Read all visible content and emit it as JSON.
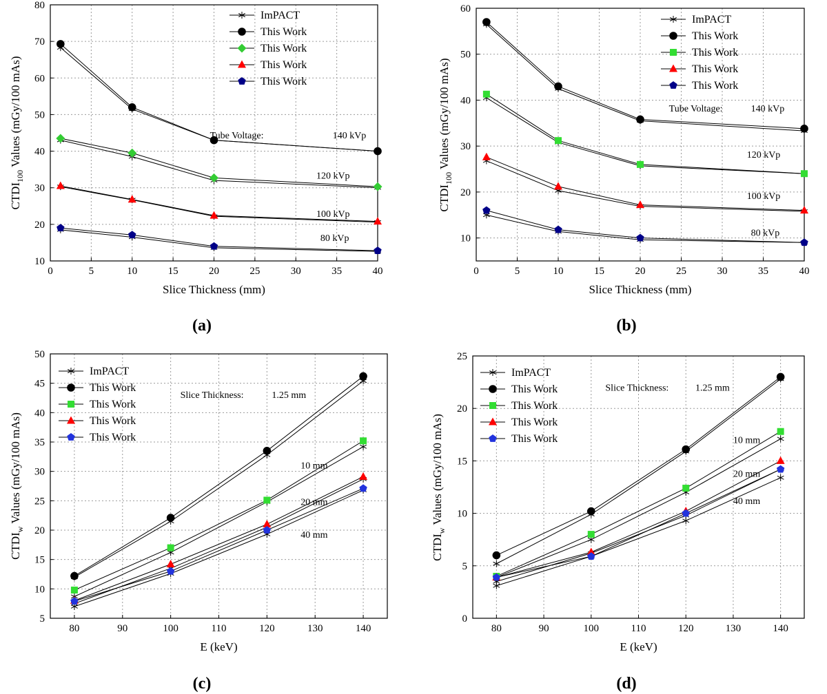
{
  "figure": {
    "panel_labels": [
      "(a)",
      "(b)",
      "(c)",
      "(d)"
    ]
  },
  "chart_data": [
    {
      "panel": "(a)",
      "type": "line",
      "xlabel": "Slice Thickness (mm)",
      "ylabel_main": "CTDI",
      "ylabel_sub": "100",
      "ylabel_rest": " Values (mGy/100 mAs)",
      "xlim": [
        0,
        40
      ],
      "ylim": [
        10,
        80
      ],
      "xticks": [
        0,
        5,
        10,
        15,
        20,
        25,
        30,
        35,
        40
      ],
      "yticks": [
        10,
        20,
        30,
        40,
        50,
        60,
        70,
        80
      ],
      "x": [
        1.25,
        10,
        20,
        40
      ],
      "legend": {
        "position": "top-right",
        "entries": [
          {
            "label": "ImPACT",
            "marker": "star",
            "color": "#000000"
          },
          {
            "label": "This Work",
            "marker": "circle",
            "color": "#000000"
          },
          {
            "label": "This Work",
            "marker": "diamond",
            "color": "#33cc33"
          },
          {
            "label": "This Work",
            "marker": "triangle",
            "color": "#ff0000"
          },
          {
            "label": "This Work",
            "marker": "pentagon",
            "color": "#000088"
          }
        ]
      },
      "groups": [
        {
          "label": "140 kVp",
          "impact": [
            68.3,
            51.5,
            43.0,
            40.0
          ],
          "thiswork": [
            69.3,
            52.0,
            43.0,
            40.0
          ],
          "marker": "circle",
          "color": "#000000"
        },
        {
          "label": "120 kVp",
          "impact": [
            43.0,
            38.5,
            32.0,
            30.0
          ],
          "thiswork": [
            43.5,
            39.5,
            32.7,
            30.3
          ],
          "marker": "diamond",
          "color": "#33cc33"
        },
        {
          "label": "100 kVp",
          "impact": [
            30.3,
            26.7,
            22.2,
            20.6
          ],
          "thiswork": [
            30.5,
            26.8,
            22.4,
            20.8
          ],
          "marker": "triangle",
          "color": "#ff0000"
        },
        {
          "label": "80 kVp",
          "impact": [
            18.5,
            16.5,
            13.6,
            12.6
          ],
          "thiswork": [
            19.0,
            17.1,
            14.0,
            12.8
          ],
          "marker": "pentagon",
          "color": "#000088"
        }
      ],
      "annotations": [
        {
          "text": "Tube Voltage:",
          "x": 19.5,
          "y": 43.5
        },
        {
          "text": "140 kVp",
          "x": 34.5,
          "y": 43.5
        },
        {
          "text": "120 kVp",
          "x": 32.5,
          "y": 32.5
        },
        {
          "text": "100 kVp",
          "x": 32.5,
          "y": 22.0
        },
        {
          "text": "80 kVp",
          "x": 33.0,
          "y": 15.5
        }
      ]
    },
    {
      "panel": "(b)",
      "type": "line",
      "xlabel": "Slice Thickness (mm)",
      "ylabel_main": "CTDI",
      "ylabel_sub": "100",
      "ylabel_rest": " Values (mGy/100 mAs)",
      "xlim": [
        0,
        40
      ],
      "ylim": [
        5,
        60
      ],
      "xticks": [
        0,
        5,
        10,
        15,
        20,
        25,
        30,
        35,
        40
      ],
      "yticks": [
        10,
        20,
        30,
        40,
        50,
        60
      ],
      "x": [
        1.25,
        10,
        20,
        40
      ],
      "legend": {
        "position": "top-right",
        "entries": [
          {
            "label": "ImPACT",
            "marker": "star",
            "color": "#000000"
          },
          {
            "label": "This Work",
            "marker": "circle",
            "color": "#000000"
          },
          {
            "label": "This Work",
            "marker": "square",
            "color": "#33dd33"
          },
          {
            "label": "This Work",
            "marker": "triangle",
            "color": "#ff0000"
          },
          {
            "label": "This Work",
            "marker": "pentagon",
            "color": "#000088"
          }
        ]
      },
      "groups": [
        {
          "label": "140 kVp",
          "impact": [
            56.5,
            42.5,
            35.5,
            33.3
          ],
          "thiswork": [
            57.0,
            43.0,
            35.8,
            33.8
          ],
          "marker": "circle",
          "color": "#000000"
        },
        {
          "label": "120 kVp",
          "impact": [
            40.5,
            30.8,
            25.7,
            24.0
          ],
          "thiswork": [
            41.3,
            31.2,
            26.0,
            24.0
          ],
          "marker": "square",
          "color": "#33dd33"
        },
        {
          "label": "100 kVp",
          "impact": [
            26.8,
            20.3,
            16.9,
            15.8
          ],
          "thiswork": [
            27.6,
            21.2,
            17.2,
            16.0
          ],
          "marker": "triangle",
          "color": "#ff0000"
        },
        {
          "label": "80 kVp",
          "impact": [
            15.0,
            11.4,
            9.6,
            9.0
          ],
          "thiswork": [
            16.0,
            11.8,
            10.0,
            9.0
          ],
          "marker": "pentagon",
          "color": "#000088"
        }
      ],
      "annotations": [
        {
          "text": "Tube Voltage:",
          "x": 23.5,
          "y": 37.5
        },
        {
          "text": "140 kVp",
          "x": 33.5,
          "y": 37.5
        },
        {
          "text": "120 kVp",
          "x": 33.0,
          "y": 27.5
        },
        {
          "text": "100 kVp",
          "x": 33.0,
          "y": 18.5
        },
        {
          "text": "80 kVp",
          "x": 33.5,
          "y": 10.5
        }
      ]
    },
    {
      "panel": "(c)",
      "type": "line",
      "xlabel": "E (keV)",
      "ylabel_main": "CTDI",
      "ylabel_sub": "w",
      "ylabel_rest": " Values (mGy/100 mAs)",
      "xlim": [
        75,
        145
      ],
      "ylim": [
        5,
        50
      ],
      "xticks": [
        80,
        90,
        100,
        110,
        120,
        130,
        140
      ],
      "yticks": [
        5,
        10,
        15,
        20,
        25,
        30,
        35,
        40,
        45,
        50
      ],
      "x": [
        80,
        100,
        120,
        140
      ],
      "legend": {
        "position": "top-left",
        "entries": [
          {
            "label": "ImPACT",
            "marker": "star",
            "color": "#000000"
          },
          {
            "label": "This Work",
            "marker": "circle",
            "color": "#000000"
          },
          {
            "label": "This Work",
            "marker": "square",
            "color": "#33dd33"
          },
          {
            "label": "This Work",
            "marker": "triangle",
            "color": "#ff0000"
          },
          {
            "label": "This Work",
            "marker": "pentagon",
            "color": "#2233dd"
          }
        ]
      },
      "groups": [
        {
          "label": "1.25 mm",
          "impact": [
            12.0,
            21.5,
            32.8,
            45.4
          ],
          "thiswork": [
            12.2,
            22.1,
            33.5,
            46.2
          ],
          "marker": "circle",
          "color": "#000000"
        },
        {
          "label": "10 mm",
          "impact": [
            8.7,
            16.2,
            24.8,
            34.2
          ],
          "thiswork": [
            9.8,
            17.0,
            25.1,
            35.2
          ],
          "marker": "square",
          "color": "#33dd33"
        },
        {
          "label": "20 mm",
          "impact": [
            7.5,
            13.5,
            20.5,
            28.7
          ],
          "thiswork": [
            8.0,
            14.2,
            21.0,
            29.1
          ],
          "marker": "triangle",
          "color": "#ff0000"
        },
        {
          "label": "40 mm",
          "impact": [
            7.0,
            12.6,
            19.3,
            26.8
          ],
          "thiswork": [
            7.9,
            13.0,
            20.0,
            27.1
          ],
          "marker": "pentagon",
          "color": "#2233dd"
        }
      ],
      "annotations": [
        {
          "text": "Slice Thickness:",
          "x": 102,
          "y": 42.5
        },
        {
          "text": "1.25 mm",
          "x": 121,
          "y": 42.5
        },
        {
          "text": "10 mm",
          "x": 127,
          "y": 30.5
        },
        {
          "text": "20 mm",
          "x": 127,
          "y": 24.3
        },
        {
          "text": "40 mm",
          "x": 127,
          "y": 18.7
        }
      ]
    },
    {
      "panel": "(d)",
      "type": "line",
      "xlabel": "E (keV)",
      "ylabel_main": "CTDI",
      "ylabel_sub": "w",
      "ylabel_rest": " Values (mGy/100 mAs)",
      "xlim": [
        75,
        145
      ],
      "ylim": [
        0,
        25
      ],
      "xticks": [
        80,
        90,
        100,
        110,
        120,
        130,
        140
      ],
      "yticks": [
        0,
        5,
        10,
        15,
        20,
        25
      ],
      "x": [
        80,
        100,
        120,
        140
      ],
      "legend": {
        "position": "top-left",
        "entries": [
          {
            "label": "ImPACT",
            "marker": "star",
            "color": "#000000"
          },
          {
            "label": "This Work",
            "marker": "circle",
            "color": "#000000"
          },
          {
            "label": "This Work",
            "marker": "square",
            "color": "#33dd33"
          },
          {
            "label": "This Work",
            "marker": "triangle",
            "color": "#ff0000"
          },
          {
            "label": "This Work",
            "marker": "pentagon",
            "color": "#2233dd"
          }
        ]
      },
      "groups": [
        {
          "label": "1.25 mm",
          "impact": [
            5.2,
            9.9,
            15.9,
            22.8
          ],
          "thiswork": [
            6.0,
            10.2,
            16.1,
            23.0
          ],
          "marker": "circle",
          "color": "#000000"
        },
        {
          "label": "10 mm",
          "impact": [
            3.9,
            7.5,
            12.0,
            17.1
          ],
          "thiswork": [
            4.0,
            8.0,
            12.4,
            17.8
          ],
          "marker": "square",
          "color": "#33dd33"
        },
        {
          "label": "20 mm",
          "impact": [
            3.5,
            6.2,
            9.8,
            14.2
          ],
          "thiswork": [
            3.9,
            6.3,
            10.2,
            15.0
          ],
          "marker": "triangle",
          "color": "#ff0000"
        },
        {
          "label": "40 mm",
          "impact": [
            3.1,
            5.9,
            9.3,
            13.4
          ],
          "thiswork": [
            3.9,
            5.9,
            10.0,
            14.2
          ],
          "marker": "pentagon",
          "color": "#2233dd"
        }
      ],
      "annotations": [
        {
          "text": "Slice Thickness:",
          "x": 103,
          "y": 21.7
        },
        {
          "text": "1.25 mm",
          "x": 122,
          "y": 21.7
        },
        {
          "text": "10 mm",
          "x": 130,
          "y": 16.7
        },
        {
          "text": "20 mm",
          "x": 130,
          "y": 13.5
        },
        {
          "text": "40 mm",
          "x": 130,
          "y": 10.9
        }
      ]
    }
  ]
}
